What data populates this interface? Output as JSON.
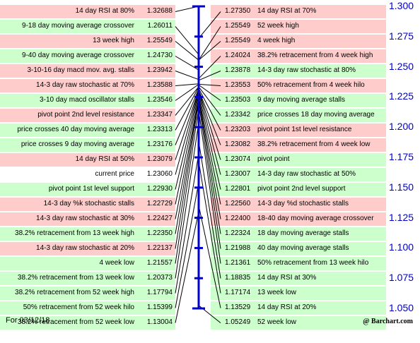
{
  "chart_data": {
    "type": "table",
    "title": "",
    "current_price": 1.2306,
    "y_axis": {
      "min": 1.05,
      "max": 1.3,
      "ticks": [
        "1.300",
        "1.275",
        "1.250",
        "1.225",
        "1.200",
        "1.175",
        "1.150",
        "1.125",
        "1.100",
        "1.075",
        "1.050"
      ],
      "color": "#0000cc"
    },
    "colors": {
      "resistance": "#ffcccc",
      "support": "#ccffcc",
      "neutral": "#ffffff",
      "axis": "#0000cc"
    },
    "left_levels": [
      {
        "label": "14 day RSI at 80%",
        "value": "1.32688",
        "zone": "resistance"
      },
      {
        "label": "9-18 day moving average crossover",
        "value": "1.26011",
        "zone": "support"
      },
      {
        "label": "13 week high",
        "value": "1.25549",
        "zone": "resistance"
      },
      {
        "label": "9-40 day moving average crossover",
        "value": "1.24730",
        "zone": "support"
      },
      {
        "label": "3-10-16 day macd mov. avg. stalls",
        "value": "1.23942",
        "zone": "resistance"
      },
      {
        "label": "14-3 day raw stochastic at 70%",
        "value": "1.23588",
        "zone": "resistance"
      },
      {
        "label": "3-10 day macd oscillator stalls",
        "value": "1.23546",
        "zone": "support"
      },
      {
        "label": "pivot point 2nd level resistance",
        "value": "1.23347",
        "zone": "resistance"
      },
      {
        "label": "price crosses 40 day moving average",
        "value": "1.23313",
        "zone": "support"
      },
      {
        "label": "price crosses 9 day moving average",
        "value": "1.23176",
        "zone": "support"
      },
      {
        "label": "14 day RSI at 50%",
        "value": "1.23079",
        "zone": "resistance"
      },
      {
        "label": "current price",
        "value": "1.23060",
        "zone": "neutral"
      },
      {
        "label": "pivot point 1st level support",
        "value": "1.22930",
        "zone": "support"
      },
      {
        "label": "14-3 day %k stochastic stalls",
        "value": "1.22729",
        "zone": "resistance"
      },
      {
        "label": "14-3 day raw stochastic at 30%",
        "value": "1.22427",
        "zone": "resistance"
      },
      {
        "label": "38.2% retracement from 13 week high",
        "value": "1.22350",
        "zone": "support"
      },
      {
        "label": "14-3 day raw stochastic at 20%",
        "value": "1.22137",
        "zone": "resistance"
      },
      {
        "label": "4 week low",
        "value": "1.21557",
        "zone": "support"
      },
      {
        "label": "38.2% retracement from 13 week low",
        "value": "1.20373",
        "zone": "support"
      },
      {
        "label": "38.2% retracement from 52 week high",
        "value": "1.17794",
        "zone": "support"
      },
      {
        "label": "50% retracement from 52 week hilo",
        "value": "1.15399",
        "zone": "support"
      },
      {
        "label": "38.2% retracement from 52 week low",
        "value": "1.13004",
        "zone": "support"
      }
    ],
    "right_levels": [
      {
        "label": "14 day RSI at 70%",
        "value": "1.27350",
        "zone": "resistance"
      },
      {
        "label": "52 week high",
        "value": "1.25549",
        "zone": "resistance"
      },
      {
        "label": "4 week high",
        "value": "1.25549",
        "zone": "resistance"
      },
      {
        "label": "38.2% retracement from 4 week high",
        "value": "1.24024",
        "zone": "resistance"
      },
      {
        "label": "14-3 day raw stochastic at 80%",
        "value": "1.23878",
        "zone": "support"
      },
      {
        "label": "50% retracement from 4 week hilo",
        "value": "1.23553",
        "zone": "resistance"
      },
      {
        "label": "9 day moving average stalls",
        "value": "1.23503",
        "zone": "support"
      },
      {
        "label": "price crosses 18 day moving average",
        "value": "1.23342",
        "zone": "support"
      },
      {
        "label": "pivot point 1st level resistance",
        "value": "1.23203",
        "zone": "resistance"
      },
      {
        "label": "38.2% retracement from 4 week low",
        "value": "1.23082",
        "zame": "",
        "zone": "resistance"
      },
      {
        "label": "pivot point",
        "value": "1.23074",
        "zone": "support"
      },
      {
        "label": "14-3 day raw stochastic at 50%",
        "value": "1.23007",
        "zone": "support"
      },
      {
        "label": "pivot point 2nd level support",
        "value": "1.22801",
        "zone": "support"
      },
      {
        "label": "14-3 day %d stochastic stalls",
        "value": "1.22560",
        "zone": "resistance"
      },
      {
        "label": "18-40 day moving average crossover",
        "value": "1.22400",
        "zone": "resistance"
      },
      {
        "label": "18 day moving average stalls",
        "value": "1.22324",
        "zone": "support"
      },
      {
        "label": "40 day moving average stalls",
        "value": "1.21988",
        "zone": "support"
      },
      {
        "label": "50% retracement from 13 week hilo",
        "value": "1.21361",
        "zone": "support"
      },
      {
        "label": "14 day RSI at 30%",
        "value": "1.18835",
        "zone": "support"
      },
      {
        "label": "13 week low",
        "value": "1.17174",
        "zone": "support"
      },
      {
        "label": "14 day RSI at 20%",
        "value": "1.13529",
        "zone": "support"
      },
      {
        "label": "52 week low",
        "value": "1.05249",
        "zone": "support"
      }
    ]
  },
  "footer": {
    "date": "For 03/12/18",
    "brand": "@ Barchart.com"
  }
}
